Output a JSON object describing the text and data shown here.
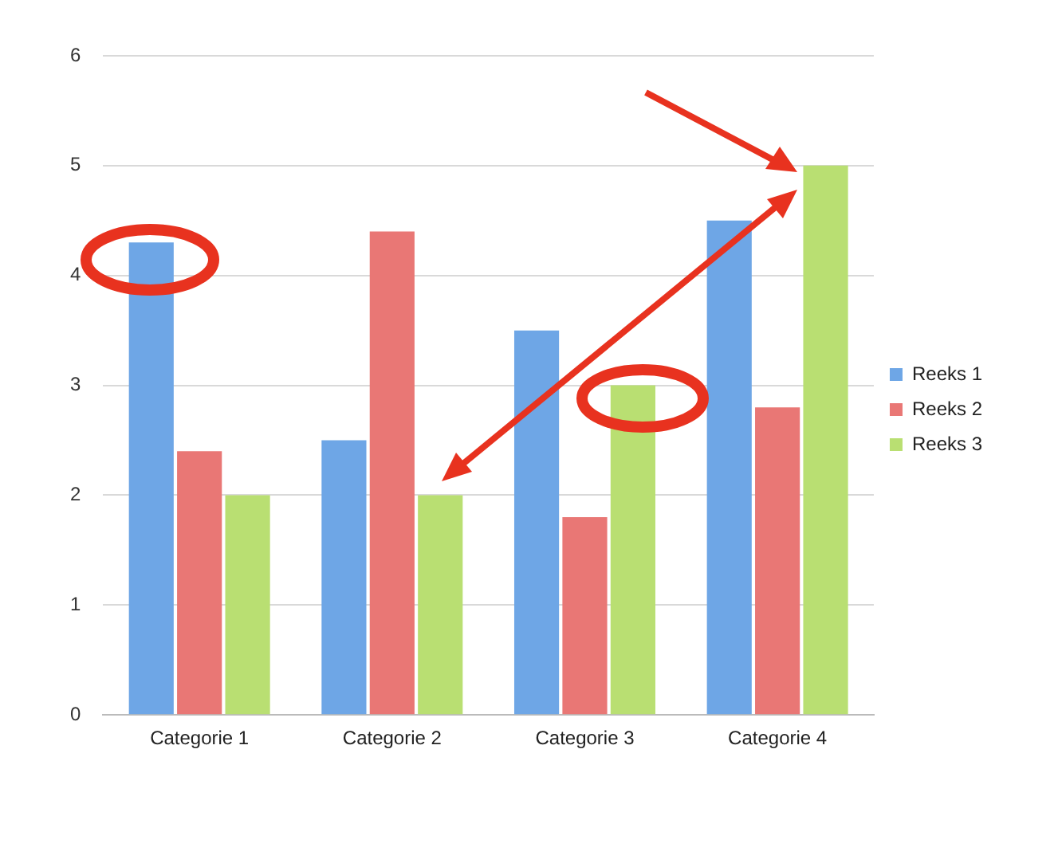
{
  "chart_data": {
    "type": "bar",
    "categories": [
      "Categorie 1",
      "Categorie 2",
      "Categorie 3",
      "Categorie 4"
    ],
    "series": [
      {
        "name": "Reeks 1",
        "color": "#6ea6e6",
        "values": [
          4.3,
          2.5,
          3.5,
          4.5
        ]
      },
      {
        "name": "Reeks 2",
        "color": "#e97775",
        "values": [
          2.4,
          4.4,
          1.8,
          2.8
        ]
      },
      {
        "name": "Reeks 3",
        "color": "#b9df72",
        "values": [
          2,
          2,
          3,
          5
        ]
      }
    ],
    "ylim": [
      0,
      6
    ],
    "yticks": [
      0,
      1,
      2,
      3,
      4,
      5,
      6
    ],
    "grid": "y",
    "legend": "right"
  }
}
